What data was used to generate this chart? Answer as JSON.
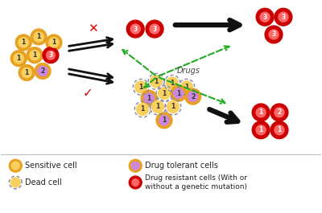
{
  "bg_color": "#ffffff",
  "legend": {
    "sensitive_cell_label": "Sensitive cell",
    "dead_cell_label": "Dead cell",
    "drug_tolerant_label": "Drug tolerant cells",
    "drug_resistant_label": "Drug resistant cells (With or\nwithout a genetic mutation)"
  },
  "arrow_color": "#111111",
  "green_color": "#22aa22",
  "drugs_label": "Drugs",
  "red_color": "#dd0000"
}
